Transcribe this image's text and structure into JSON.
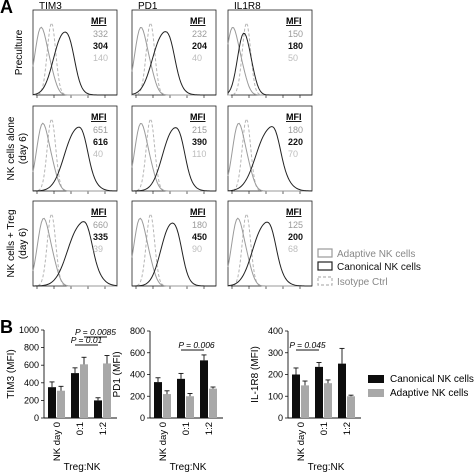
{
  "panel_a": {
    "letter": "A",
    "columns": [
      "TIM3",
      "PD1",
      "IL1R8"
    ],
    "rows": [
      {
        "label_lines": [
          "Preculture"
        ]
      },
      {
        "label_lines": [
          "NK cells alone",
          "(day 6)"
        ]
      },
      {
        "label_lines": [
          "NK cells + Treg",
          "(day 6)"
        ]
      }
    ],
    "mfi_header": "MFI",
    "mfi": [
      [
        [
          "332",
          "304",
          "140"
        ],
        [
          "232",
          "204",
          "40"
        ],
        [
          "150",
          "180",
          "50"
        ]
      ],
      [
        [
          "651",
          "616",
          "40"
        ],
        [
          "215",
          "390",
          "110"
        ],
        [
          "180",
          "220",
          "70"
        ]
      ],
      [
        [
          "660",
          "335",
          "39"
        ],
        [
          "180",
          "450",
          "90"
        ],
        [
          "125",
          "200",
          "68"
        ]
      ]
    ],
    "legend": [
      {
        "label": "Adaptive NK cells",
        "style": "gray-solid",
        "color": "#9a9a9a"
      },
      {
        "label": "Canonical NK cells",
        "style": "black-solid",
        "color": "#222222"
      },
      {
        "label": "Isotype Ctrl",
        "style": "dashed",
        "color": "#b5b5b5"
      }
    ]
  },
  "panel_b": {
    "letter": "B",
    "xlabel": "Treg:NK",
    "legend": [
      {
        "label": "Canonical NK cells",
        "color": "#0d0d0d"
      },
      {
        "label": "Adaptive NK cells",
        "color": "#a8a8a8"
      }
    ]
  },
  "chart_data": [
    {
      "type": "bar",
      "ylabel": "TIM3 (MFI)",
      "ylim": [
        0,
        1000
      ],
      "yticks": [
        "0",
        "200",
        "400",
        "600",
        "800",
        "1000"
      ],
      "categories": [
        "NK day 0",
        "0:1",
        "1:2"
      ],
      "series": [
        {
          "name": "Canonical NK cells",
          "values": [
            350,
            510,
            200
          ],
          "errors": [
            60,
            60,
            30
          ]
        },
        {
          "name": "Adaptive NK cells",
          "values": [
            310,
            610,
            620
          ],
          "errors": [
            50,
            80,
            90
          ]
        }
      ],
      "annotations": [
        {
          "text": "P = 0.0085",
          "from": 1,
          "to": 2,
          "series": 1
        },
        {
          "text": "P = 0.01",
          "from": 1,
          "to": 2,
          "series": 0
        }
      ]
    },
    {
      "type": "bar",
      "ylabel": "PD1 (MFI)",
      "ylim": [
        0,
        800
      ],
      "yticks": [
        "0",
        "200",
        "400",
        "600",
        "800"
      ],
      "categories": [
        "NK day 0",
        "0:1",
        "1:2"
      ],
      "series": [
        {
          "name": "Canonical NK cells",
          "values": [
            330,
            360,
            530
          ],
          "errors": [
            40,
            50,
            50
          ]
        },
        {
          "name": "Adaptive NK cells",
          "values": [
            220,
            200,
            270
          ],
          "errors": [
            30,
            25,
            15
          ]
        }
      ],
      "annotations": [
        {
          "text": "P = 0.006",
          "from": 1,
          "to": 2,
          "series": 0
        }
      ]
    },
    {
      "type": "bar",
      "ylabel": "IL-1R8 (MFI)",
      "ylim": [
        0,
        400
      ],
      "yticks": [
        "0",
        "100",
        "200",
        "300",
        "400"
      ],
      "categories": [
        "NK day 0",
        "0:1",
        "1:2"
      ],
      "series": [
        {
          "name": "Canonical NK cells",
          "values": [
            200,
            235,
            250
          ],
          "errors": [
            30,
            20,
            70
          ]
        },
        {
          "name": "Adaptive NK cells",
          "values": [
            150,
            160,
            100
          ],
          "errors": [
            20,
            15,
            5
          ]
        }
      ],
      "annotations": [
        {
          "text": "P = 0.045",
          "from": 0,
          "to": 1,
          "series": 0
        }
      ]
    }
  ]
}
